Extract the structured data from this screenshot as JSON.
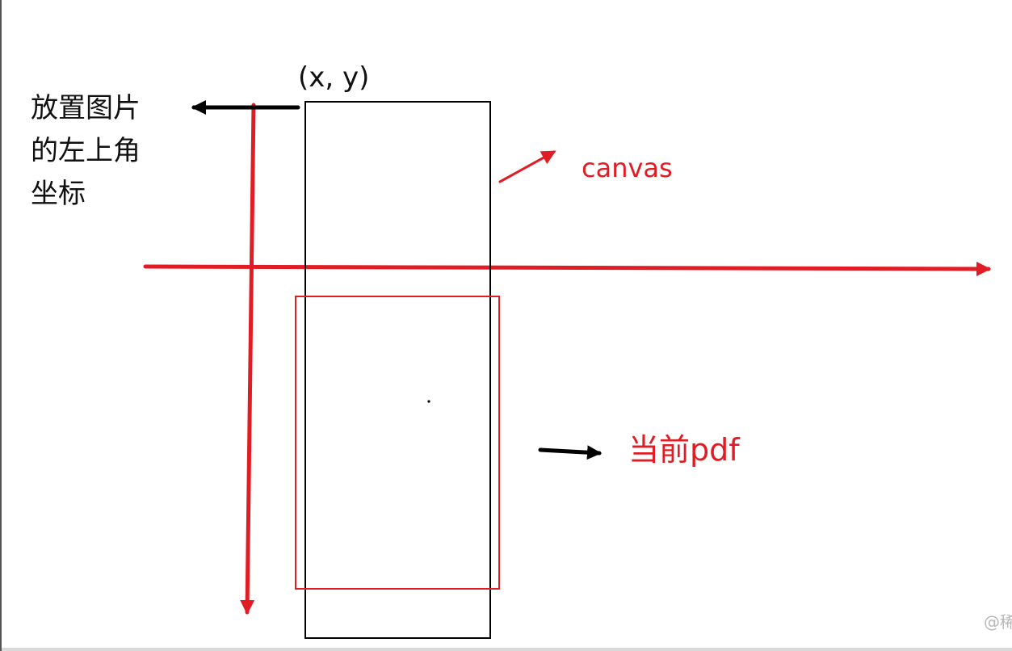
{
  "diagram": {
    "point_label": "(x, y)",
    "origin_label": [
      "放置图片",
      "的左上角",
      "坐标"
    ],
    "canvas_label": "canvas",
    "pdf_label": "当前pdf",
    "watermark": "@稀"
  },
  "colors": {
    "red": "#e01d25",
    "black": "#000000",
    "text": "#111111",
    "watermark": "#b8b8b8"
  }
}
